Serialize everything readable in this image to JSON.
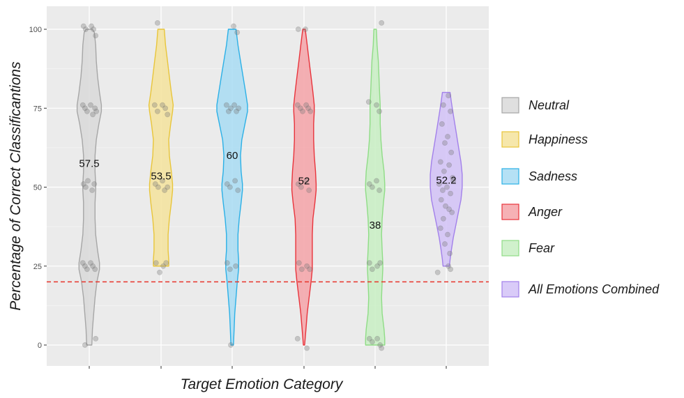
{
  "chart_data": {
    "type": "violin",
    "xlabel": "Target Emotion Category",
    "ylabel": "Percentage of Correct Classificantions",
    "ylim": [
      -6,
      109
    ],
    "yticks": [
      0,
      25,
      50,
      75,
      100
    ],
    "grid": true,
    "legend_position": "right",
    "reference_line": {
      "y": 20,
      "style": "dashed",
      "color": "#e8332a"
    },
    "series": [
      {
        "name": "Neutral",
        "fill": "#d9d9d9",
        "stroke": "#a6a6a6",
        "mean_label": "57.5",
        "label_y": 57.5,
        "range": [
          0,
          100
        ],
        "profile": [
          [
            100,
            0.05
          ],
          [
            99,
            0.08
          ],
          [
            95,
            0.1
          ],
          [
            90,
            0.11
          ],
          [
            85,
            0.13
          ],
          [
            80,
            0.16
          ],
          [
            76,
            0.19
          ],
          [
            74,
            0.19
          ],
          [
            70,
            0.15
          ],
          [
            65,
            0.11
          ],
          [
            60,
            0.09
          ],
          [
            55,
            0.09
          ],
          [
            51,
            0.1
          ],
          [
            49,
            0.1
          ],
          [
            45,
            0.09
          ],
          [
            40,
            0.09
          ],
          [
            35,
            0.1
          ],
          [
            30,
            0.13
          ],
          [
            26,
            0.16
          ],
          [
            24,
            0.16
          ],
          [
            20,
            0.12
          ],
          [
            15,
            0.09
          ],
          [
            10,
            0.07
          ],
          [
            5,
            0.05
          ],
          [
            0,
            0.04
          ]
        ],
        "points": [
          [
            -0.08,
            101
          ],
          [
            -0.05,
            100
          ],
          [
            0.03,
            101
          ],
          [
            0.06,
            100
          ],
          [
            0.09,
            98
          ],
          [
            -0.09,
            76
          ],
          [
            -0.06,
            75
          ],
          [
            -0.03,
            74
          ],
          [
            0.02,
            76
          ],
          [
            0.05,
            73
          ],
          [
            0.08,
            75
          ],
          [
            0.1,
            74
          ],
          [
            -0.08,
            51
          ],
          [
            -0.05,
            50
          ],
          [
            -0.02,
            52
          ],
          [
            0.04,
            49
          ],
          [
            0.07,
            51
          ],
          [
            -0.09,
            26
          ],
          [
            -0.06,
            25
          ],
          [
            -0.03,
            24
          ],
          [
            0.02,
            26
          ],
          [
            0.05,
            25
          ],
          [
            0.08,
            24
          ],
          [
            -0.06,
            0
          ],
          [
            0.09,
            2
          ]
        ]
      },
      {
        "name": "Happiness",
        "fill": "#f5e39c",
        "stroke": "#e8c53a",
        "mean_label": "53.5",
        "label_y": 53.5,
        "range": [
          25,
          100
        ],
        "profile": [
          [
            100,
            0.05
          ],
          [
            95,
            0.07
          ],
          [
            90,
            0.1
          ],
          [
            85,
            0.13
          ],
          [
            80,
            0.16
          ],
          [
            76,
            0.19
          ],
          [
            74,
            0.18
          ],
          [
            70,
            0.15
          ],
          [
            65,
            0.12
          ],
          [
            60,
            0.13
          ],
          [
            55,
            0.16
          ],
          [
            51,
            0.18
          ],
          [
            49,
            0.18
          ],
          [
            45,
            0.16
          ],
          [
            40,
            0.13
          ],
          [
            35,
            0.11
          ],
          [
            30,
            0.11
          ],
          [
            27,
            0.12
          ],
          [
            25,
            0.12
          ]
        ],
        "points": [
          [
            -0.05,
            102
          ],
          [
            -0.09,
            76
          ],
          [
            -0.05,
            74
          ],
          [
            0.02,
            76
          ],
          [
            0.06,
            75
          ],
          [
            0.09,
            73
          ],
          [
            -0.08,
            51
          ],
          [
            -0.04,
            50
          ],
          [
            0.02,
            52
          ],
          [
            0.05,
            49
          ],
          [
            0.09,
            50
          ],
          [
            -0.07,
            26
          ],
          [
            0.03,
            25
          ],
          [
            0.07,
            26
          ],
          [
            -0.02,
            23
          ]
        ]
      },
      {
        "name": "Sadness",
        "fill": "#a8dcf3",
        "stroke": "#2bb0e6",
        "mean_label": "60",
        "label_y": 60,
        "range": [
          0,
          100
        ],
        "profile": [
          [
            100,
            0.06
          ],
          [
            95,
            0.09
          ],
          [
            90,
            0.13
          ],
          [
            85,
            0.17
          ],
          [
            80,
            0.21
          ],
          [
            76,
            0.24
          ],
          [
            74,
            0.24
          ],
          [
            70,
            0.2
          ],
          [
            65,
            0.15
          ],
          [
            60,
            0.13
          ],
          [
            55,
            0.14
          ],
          [
            51,
            0.16
          ],
          [
            49,
            0.16
          ],
          [
            45,
            0.14
          ],
          [
            40,
            0.11
          ],
          [
            35,
            0.09
          ],
          [
            30,
            0.09
          ],
          [
            27,
            0.1
          ],
          [
            24,
            0.1
          ],
          [
            20,
            0.08
          ],
          [
            15,
            0.06
          ],
          [
            10,
            0.04
          ],
          [
            5,
            0.03
          ],
          [
            0,
            0.02
          ]
        ],
        "points": [
          [
            0.02,
            101
          ],
          [
            0.07,
            99
          ],
          [
            -0.08,
            76
          ],
          [
            -0.05,
            74
          ],
          [
            -0.02,
            75
          ],
          [
            0.03,
            76
          ],
          [
            0.06,
            74
          ],
          [
            0.09,
            75
          ],
          [
            -0.07,
            51
          ],
          [
            -0.03,
            50
          ],
          [
            0.04,
            52
          ],
          [
            0.08,
            49
          ],
          [
            -0.07,
            26
          ],
          [
            -0.03,
            24
          ],
          [
            0.05,
            25
          ],
          [
            -0.02,
            0
          ]
        ]
      },
      {
        "name": "Anger",
        "fill": "#f4a3a8",
        "stroke": "#e8333b",
        "mean_label": "52",
        "label_y": 52,
        "range": [
          0,
          100
        ],
        "profile": [
          [
            100,
            0.02
          ],
          [
            95,
            0.05
          ],
          [
            90,
            0.08
          ],
          [
            85,
            0.11
          ],
          [
            80,
            0.14
          ],
          [
            76,
            0.16
          ],
          [
            74,
            0.16
          ],
          [
            70,
            0.15
          ],
          [
            65,
            0.15
          ],
          [
            60,
            0.16
          ],
          [
            55,
            0.18
          ],
          [
            51,
            0.19
          ],
          [
            49,
            0.19
          ],
          [
            45,
            0.17
          ],
          [
            40,
            0.14
          ],
          [
            35,
            0.13
          ],
          [
            30,
            0.13
          ],
          [
            26,
            0.13
          ],
          [
            24,
            0.13
          ],
          [
            20,
            0.11
          ],
          [
            15,
            0.08
          ],
          [
            10,
            0.05
          ],
          [
            5,
            0.03
          ],
          [
            0,
            0.01
          ]
        ],
        "points": [
          [
            -0.08,
            100
          ],
          [
            0.02,
            100
          ],
          [
            -0.09,
            76
          ],
          [
            -0.05,
            75
          ],
          [
            -0.02,
            74
          ],
          [
            0.03,
            76
          ],
          [
            0.06,
            75
          ],
          [
            0.09,
            74
          ],
          [
            -0.08,
            51
          ],
          [
            -0.04,
            50
          ],
          [
            0.03,
            52
          ],
          [
            0.07,
            49
          ],
          [
            -0.07,
            26
          ],
          [
            -0.03,
            24
          ],
          [
            0.04,
            25
          ],
          [
            0.08,
            24
          ],
          [
            -0.09,
            2
          ],
          [
            0.04,
            -1
          ]
        ]
      },
      {
        "name": "Fear",
        "fill": "#c8eec3",
        "stroke": "#8fdc86",
        "mean_label": "38",
        "label_y": 38,
        "range": [
          0,
          100
        ],
        "profile": [
          [
            100,
            0.02
          ],
          [
            95,
            0.03
          ],
          [
            90,
            0.05
          ],
          [
            85,
            0.06
          ],
          [
            80,
            0.07
          ],
          [
            76,
            0.08
          ],
          [
            74,
            0.08
          ],
          [
            70,
            0.08
          ],
          [
            65,
            0.09
          ],
          [
            60,
            0.11
          ],
          [
            55,
            0.14
          ],
          [
            51,
            0.15
          ],
          [
            49,
            0.15
          ],
          [
            45,
            0.13
          ],
          [
            40,
            0.11
          ],
          [
            35,
            0.1
          ],
          [
            30,
            0.11
          ],
          [
            26,
            0.12
          ],
          [
            24,
            0.12
          ],
          [
            20,
            0.11
          ],
          [
            15,
            0.1
          ],
          [
            10,
            0.11
          ],
          [
            5,
            0.14
          ],
          [
            2,
            0.15
          ],
          [
            0,
            0.15
          ]
        ],
        "points": [
          [
            0.09,
            102
          ],
          [
            -0.09,
            77
          ],
          [
            0.02,
            76
          ],
          [
            0.06,
            74
          ],
          [
            -0.08,
            51
          ],
          [
            -0.04,
            50
          ],
          [
            0.02,
            52
          ],
          [
            0.06,
            49
          ],
          [
            -0.08,
            26
          ],
          [
            -0.04,
            24
          ],
          [
            0.03,
            25
          ],
          [
            0.07,
            26
          ],
          [
            -0.08,
            2
          ],
          [
            -0.04,
            1
          ],
          [
            0.03,
            2
          ],
          [
            0.07,
            0
          ],
          [
            0.09,
            -1
          ]
        ]
      },
      {
        "name": "All Emotions Combined",
        "fill": "#d2c2f7",
        "stroke": "#a280ea",
        "mean_label": "52.2",
        "label_y": 52.2,
        "range": [
          25,
          80
        ],
        "profile": [
          [
            80,
            0.06
          ],
          [
            77,
            0.08
          ],
          [
            73,
            0.11
          ],
          [
            68,
            0.15
          ],
          [
            63,
            0.19
          ],
          [
            58,
            0.23
          ],
          [
            54,
            0.25
          ],
          [
            50,
            0.25
          ],
          [
            46,
            0.23
          ],
          [
            42,
            0.19
          ],
          [
            38,
            0.15
          ],
          [
            34,
            0.11
          ],
          [
            30,
            0.08
          ],
          [
            27,
            0.06
          ],
          [
            25,
            0.05
          ]
        ],
        "points": [
          [
            0.03,
            79
          ],
          [
            -0.04,
            76
          ],
          [
            0.06,
            74
          ],
          [
            -0.06,
            70
          ],
          [
            0.02,
            66
          ],
          [
            -0.02,
            64
          ],
          [
            0.07,
            61
          ],
          [
            -0.08,
            58
          ],
          [
            -0.03,
            55
          ],
          [
            0.04,
            57
          ],
          [
            0.09,
            53
          ],
          [
            -0.1,
            51
          ],
          [
            -0.05,
            49
          ],
          [
            0.01,
            50
          ],
          [
            0.06,
            48
          ],
          [
            0.1,
            52
          ],
          [
            -0.07,
            46
          ],
          [
            -0.01,
            44
          ],
          [
            0.04,
            43
          ],
          [
            -0.04,
            40
          ],
          [
            0.08,
            42
          ],
          [
            -0.08,
            37
          ],
          [
            0.02,
            35
          ],
          [
            -0.02,
            32
          ],
          [
            0.05,
            29
          ],
          [
            0.03,
            25
          ],
          [
            -0.12,
            23
          ],
          [
            0.06,
            24
          ]
        ]
      }
    ]
  }
}
